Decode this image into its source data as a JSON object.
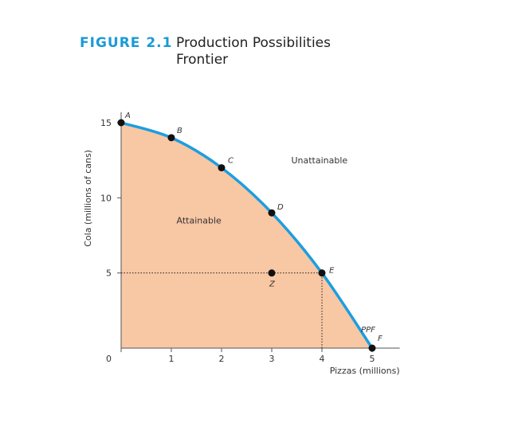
{
  "figure": {
    "label": "FIGURE 2.1",
    "title_line1": "Production Possibilities",
    "title_line2": "Frontier"
  },
  "colors": {
    "accent": "#1a9ad6",
    "curve": "#1c9ee0",
    "fill": "#f8c7a4",
    "point": "#111111",
    "axis": "#555555"
  },
  "chart_data": {
    "type": "line",
    "xlabel": "Pizzas (millions)",
    "ylabel": "Cola (millions of cans)",
    "xlim": [
      0,
      5
    ],
    "ylim": [
      0,
      15
    ],
    "x_ticks": [
      0,
      1,
      2,
      3,
      4,
      5
    ],
    "y_ticks": [
      0,
      5,
      10,
      15
    ],
    "x_tick_labels": [
      "",
      "1",
      "2",
      "3",
      "4",
      "5"
    ],
    "y_tick_labels": [
      "0",
      "5",
      "10",
      "15"
    ],
    "series": [
      {
        "name": "PPF",
        "points": [
          {
            "label": "A",
            "x": 0,
            "y": 15
          },
          {
            "label": "B",
            "x": 1,
            "y": 14
          },
          {
            "label": "C",
            "x": 2,
            "y": 12
          },
          {
            "label": "D",
            "x": 3,
            "y": 9
          },
          {
            "label": "E",
            "x": 4,
            "y": 5
          },
          {
            "label": "F",
            "x": 5,
            "y": 0
          }
        ]
      }
    ],
    "extra_points": [
      {
        "label": "Z",
        "x": 3,
        "y": 5
      }
    ],
    "reference_lines": [
      {
        "type": "horizontal",
        "y": 5,
        "x_from": 0,
        "x_to": 4
      },
      {
        "type": "vertical",
        "x": 4,
        "y_from": 0,
        "y_to": 5
      }
    ],
    "annotations": [
      {
        "text": "Unattainable",
        "x": 3.95,
        "y": 12.3
      },
      {
        "text": "Attainable",
        "x": 1.55,
        "y": 8.3
      }
    ],
    "grid": false
  }
}
